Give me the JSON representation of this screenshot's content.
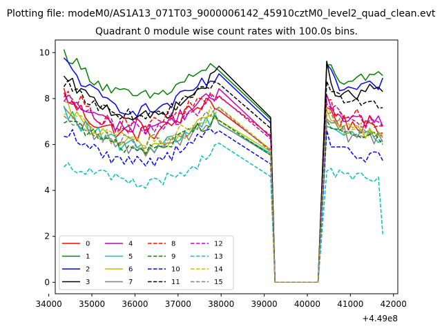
{
  "figure": {
    "suptitle": "Plotting file: modeM0/AS1A13_071T03_9000006142_45910cztM0_level2_quad_clean.evt",
    "title": "Quadrant 0 module wise count rates with 100.0s bins.",
    "offset_label": "+4.49e8"
  },
  "chart_data": {
    "type": "line",
    "title": "Quadrant 0 module wise count rates with 100.0s bins.",
    "xlabel": "",
    "ylabel": "",
    "x_offset": 449000000,
    "xlim": [
      34150,
      42100
    ],
    "ylim": [
      -0.5,
      10.55
    ],
    "xticks": [
      34000,
      35000,
      36000,
      37000,
      38000,
      39000,
      40000,
      41000,
      42000
    ],
    "xtick_labels": [
      "34000",
      "35000",
      "36000",
      "37000",
      "38000",
      "39000",
      "40000",
      "41000",
      "42000"
    ],
    "yticks": [
      0,
      2,
      4,
      6,
      8,
      10
    ],
    "ytick_labels": [
      "0",
      "2",
      "4",
      "6",
      "8",
      "10"
    ],
    "grid": false,
    "legend_position": "lower-left",
    "legend_columns": 4,
    "gap": {
      "start": 39250,
      "end": 40250,
      "value": 0
    },
    "segments": [
      {
        "x_start": 34350,
        "x_end": 39050,
        "step": 100
      },
      {
        "x_start": 40450,
        "x_end": 41750,
        "step": 100
      }
    ],
    "series": [
      {
        "name": "0",
        "color": "#ff0000",
        "dash": false,
        "seg1": [
          8.3,
          7.7,
          7.5,
          7.1,
          6.9,
          6.7,
          6.6,
          6.5,
          6.4,
          6.5,
          6.5,
          6.6,
          6.7,
          7.0,
          7.3,
          7.5,
          7.8,
          8.0,
          7.4
        ],
        "seg2": [
          7.6,
          7.4,
          7.2,
          7.0,
          7.0,
          6.9,
          6.9,
          6.8,
          6.8,
          6.7,
          6.6,
          6.6,
          6.5,
          6.5
        ],
        "amp": 0.35
      },
      {
        "name": "1",
        "color": "#008000",
        "dash": false,
        "seg1": [
          10.0,
          9.7,
          9.3,
          9.0,
          8.7,
          8.5,
          8.3,
          8.2,
          8.1,
          8.1,
          8.1,
          8.2,
          8.3,
          8.5,
          8.8,
          9.0,
          9.2,
          9.3,
          9.1
        ],
        "seg2": [
          9.6,
          9.3,
          9.0,
          8.9,
          8.8,
          8.8,
          8.7,
          8.7,
          8.8,
          8.8,
          8.8,
          8.9,
          9.0,
          9.0
        ],
        "amp": 0.28
      },
      {
        "name": "2",
        "color": "#0000ff",
        "dash": false,
        "seg1": [
          9.6,
          9.2,
          8.8,
          8.4,
          8.1,
          7.9,
          7.7,
          7.6,
          7.5,
          7.5,
          7.5,
          7.6,
          7.7,
          7.9,
          8.1,
          8.4,
          8.6,
          8.8,
          8.9
        ],
        "seg2": [
          9.2,
          9.0,
          8.7,
          8.5,
          8.4,
          8.4,
          8.4,
          8.4,
          8.4,
          8.4,
          8.5,
          8.5,
          8.6,
          8.9
        ],
        "amp": 0.3
      },
      {
        "name": "3",
        "color": "#000000",
        "dash": false,
        "seg1": [
          8.8,
          8.6,
          8.3,
          8.0,
          7.8,
          7.6,
          7.4,
          7.3,
          7.2,
          7.2,
          7.2,
          7.3,
          7.4,
          7.6,
          7.9,
          8.2,
          8.5,
          8.8,
          9.2
        ],
        "seg2": [
          9.5,
          8.9,
          8.4,
          8.2,
          8.1,
          8.1,
          8.1,
          8.2,
          8.2,
          8.3,
          8.4,
          8.4,
          8.5,
          8.3
        ],
        "amp": 0.28
      },
      {
        "name": "4",
        "color": "#bf00bf",
        "dash": false,
        "seg1": [
          8.0,
          7.8,
          7.6,
          7.4,
          7.2,
          7.0,
          6.9,
          6.8,
          6.8,
          6.8,
          6.8,
          6.9,
          7.0,
          7.2,
          7.4,
          7.6,
          7.8,
          8.0,
          8.1
        ],
        "seg2": [
          8.2,
          7.8,
          7.5,
          7.4,
          7.3,
          7.2,
          7.2,
          7.1,
          7.1,
          7.1,
          7.0,
          7.0,
          7.0,
          6.8
        ],
        "amp": 0.35
      },
      {
        "name": "5",
        "color": "#00bfbf",
        "dash": false,
        "seg1": [
          7.4,
          7.2,
          6.9,
          6.6,
          6.4,
          6.2,
          6.1,
          6.0,
          5.9,
          5.9,
          5.9,
          6.0,
          6.1,
          6.3,
          6.5,
          6.7,
          6.9,
          7.1,
          7.2
        ],
        "seg2": [
          7.0,
          6.8,
          6.7,
          6.6,
          6.5,
          6.5,
          6.5,
          6.5,
          6.5,
          6.5,
          6.4,
          6.4,
          6.3,
          6.2
        ],
        "amp": 0.35
      },
      {
        "name": "6",
        "color": "#bfbf00",
        "dash": false,
        "seg1": [
          7.6,
          7.3,
          7.0,
          6.7,
          6.5,
          6.3,
          6.1,
          6.0,
          6.0,
          5.9,
          5.9,
          6.0,
          6.1,
          6.3,
          6.5,
          6.8,
          7.0,
          7.2,
          7.3
        ],
        "seg2": [
          7.2,
          7.0,
          6.9,
          6.8,
          6.7,
          6.7,
          6.7,
          6.6,
          6.6,
          6.6,
          6.5,
          6.5,
          6.5,
          6.4
        ],
        "amp": 0.35
      },
      {
        "name": "7",
        "color": "#808080",
        "dash": false,
        "seg1": [
          7.3,
          7.1,
          6.8,
          6.5,
          6.3,
          6.1,
          6.0,
          5.9,
          5.8,
          5.8,
          5.8,
          5.9,
          6.0,
          6.2,
          6.4,
          6.6,
          6.8,
          7.0,
          7.1
        ],
        "seg2": [
          7.0,
          6.8,
          6.7,
          6.6,
          6.5,
          6.4,
          6.4,
          6.4,
          6.4,
          6.3,
          6.3,
          6.3,
          6.2,
          6.1
        ],
        "amp": 0.35
      },
      {
        "name": "8",
        "color": "#ff0000",
        "dash": true,
        "seg1": [
          8.4,
          8.1,
          7.8,
          7.5,
          7.3,
          7.1,
          7.0,
          6.9,
          6.9,
          6.9,
          6.9,
          7.0,
          7.1,
          7.3,
          7.5,
          7.7,
          7.9,
          8.1,
          8.2
        ],
        "seg2": [
          8.0,
          7.7,
          7.5,
          7.4,
          7.3,
          7.3,
          7.2,
          7.2,
          7.2,
          7.1,
          7.1,
          7.1,
          7.0,
          6.8
        ],
        "amp": 0.35
      },
      {
        "name": "9",
        "color": "#008000",
        "dash": true,
        "seg1": [
          7.2,
          7.0,
          6.8,
          6.5,
          6.3,
          6.1,
          6.0,
          5.9,
          5.9,
          5.8,
          5.9,
          5.9,
          6.0,
          6.2,
          6.4,
          6.6,
          6.8,
          7.0,
          7.1
        ],
        "seg2": [
          7.3,
          7.0,
          6.8,
          6.6,
          6.5,
          6.5,
          6.4,
          6.4,
          6.4,
          6.3,
          6.3,
          6.3,
          6.2,
          6.0
        ],
        "amp": 0.3
      },
      {
        "name": "10",
        "color": "#0000ff",
        "dash": true,
        "seg1": [
          6.6,
          6.4,
          6.1,
          5.9,
          5.7,
          5.5,
          5.4,
          5.3,
          5.3,
          5.3,
          5.3,
          5.4,
          5.5,
          5.7,
          5.9,
          6.1,
          6.3,
          6.5,
          6.6
        ],
        "seg2": [
          6.4,
          6.1,
          5.9,
          5.8,
          5.7,
          5.6,
          5.6,
          5.6,
          5.6,
          5.5,
          5.5,
          5.5,
          5.4,
          5.3
        ],
        "amp": 0.3
      },
      {
        "name": "11",
        "color": "#000000",
        "dash": true,
        "seg1": [
          8.7,
          8.4,
          8.1,
          7.9,
          7.7,
          7.5,
          7.4,
          7.3,
          7.3,
          7.3,
          7.3,
          7.4,
          7.5,
          7.7,
          7.9,
          8.1,
          8.3,
          8.5,
          8.6
        ],
        "seg2": [
          8.7,
          8.4,
          8.2,
          8.1,
          8.0,
          8.0,
          7.9,
          7.9,
          7.9,
          7.8,
          7.8,
          7.8,
          7.7,
          7.6
        ],
        "amp": 0.25
      },
      {
        "name": "12",
        "color": "#bf00bf",
        "dash": true,
        "seg1": [
          8.1,
          7.8,
          7.5,
          7.2,
          7.0,
          6.9,
          6.8,
          6.7,
          6.7,
          6.7,
          6.7,
          6.8,
          6.9,
          7.1,
          7.3,
          7.5,
          7.7,
          7.9,
          8.0
        ],
        "seg2": [
          7.9,
          7.6,
          7.4,
          7.3,
          7.2,
          7.2,
          7.1,
          7.1,
          7.1,
          7.0,
          7.0,
          7.0,
          6.9,
          6.8
        ],
        "amp": 0.35
      },
      {
        "name": "13",
        "color": "#00bfbf",
        "dash": true,
        "seg1": [
          5.2,
          5.1,
          5.0,
          4.8,
          4.7,
          4.6,
          4.5,
          4.4,
          4.3,
          4.3,
          4.3,
          4.4,
          4.5,
          4.7,
          4.9,
          5.1,
          5.3,
          5.6,
          5.9
        ],
        "seg2": [
          5.1,
          4.9,
          4.8,
          4.7,
          4.6,
          4.6,
          4.5,
          4.5,
          4.5,
          4.5,
          4.4,
          4.4,
          4.3,
          2.1
        ],
        "amp": 0.3
      },
      {
        "name": "14",
        "color": "#bfbf00",
        "dash": true,
        "seg1": [
          7.5,
          7.3,
          7.0,
          6.8,
          6.6,
          6.4,
          6.3,
          6.2,
          6.2,
          6.1,
          6.2,
          6.2,
          6.3,
          6.5,
          6.7,
          6.9,
          7.1,
          7.3,
          7.4
        ],
        "seg2": [
          7.4,
          7.2,
          7.0,
          6.9,
          6.8,
          6.8,
          6.7,
          6.7,
          6.7,
          6.6,
          6.6,
          6.6,
          6.5,
          6.4
        ],
        "amp": 0.35
      },
      {
        "name": "15",
        "color": "#808080",
        "dash": true,
        "seg1": [
          7.4,
          7.2,
          6.9,
          6.7,
          6.5,
          6.3,
          6.2,
          6.1,
          6.1,
          6.0,
          6.1,
          6.1,
          6.2,
          6.4,
          6.6,
          6.8,
          7.0,
          7.2,
          7.3
        ],
        "seg2": [
          7.3,
          7.1,
          6.9,
          6.8,
          6.7,
          6.7,
          6.6,
          6.6,
          6.6,
          6.5,
          6.5,
          6.5,
          6.4,
          6.3
        ],
        "amp": 0.35
      }
    ]
  }
}
